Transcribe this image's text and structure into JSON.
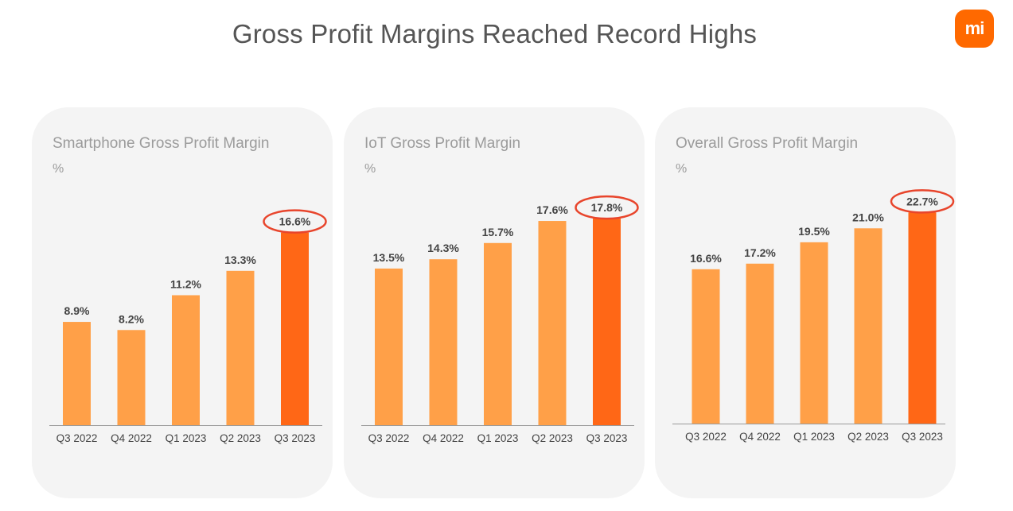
{
  "header": {
    "title": "Gross Profit Margins Reached Record Highs",
    "logo_text": "mi",
    "logo_color": "#ff6900"
  },
  "colors": {
    "bar": "#ffa048",
    "highlight_bar": "#ff6716",
    "callout_ring": "#e8452c",
    "axis": "#9a9a9a"
  },
  "chart_data": [
    {
      "type": "bar",
      "title": "Smartphone Gross Profit Margin",
      "ylabel": "%",
      "xlabel": "",
      "categories": [
        "Q3 2022",
        "Q4 2022",
        "Q1 2023",
        "Q2 2023",
        "Q3 2023"
      ],
      "values": [
        8.9,
        8.2,
        11.2,
        13.3,
        16.6
      ],
      "labels": [
        "8.9%",
        "8.2%",
        "11.2%",
        "13.3%",
        "16.6%"
      ],
      "highlight_index": 4
    },
    {
      "type": "bar",
      "title": "IoT Gross Profit Margin",
      "ylabel": "%",
      "xlabel": "",
      "categories": [
        "Q3 2022",
        "Q4 2022",
        "Q1 2023",
        "Q2 2023",
        "Q3 2023"
      ],
      "values": [
        13.5,
        14.3,
        15.7,
        17.6,
        17.8
      ],
      "labels": [
        "13.5%",
        "14.3%",
        "15.7%",
        "17.6%",
        "17.8%"
      ],
      "highlight_index": 4
    },
    {
      "type": "bar",
      "title": "Overall Gross Profit Margin",
      "ylabel": "%",
      "xlabel": "",
      "categories": [
        "Q3 2022",
        "Q4 2022",
        "Q1 2023",
        "Q2 2023",
        "Q3 2023"
      ],
      "values": [
        16.6,
        17.2,
        19.5,
        21.0,
        22.7
      ],
      "labels": [
        "16.6%",
        "17.2%",
        "19.5%",
        "21.0%",
        "22.7%"
      ],
      "highlight_index": 4
    }
  ]
}
